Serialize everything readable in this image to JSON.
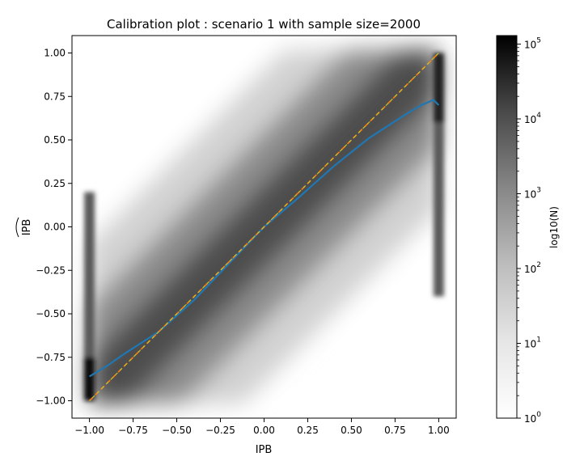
{
  "chart_data": {
    "type": "heatmap",
    "title": "Calibration plot : scenario 1 with sample size=2000",
    "xlabel": "IPB",
    "ylabel": "IPB",
    "ylabel_has_hat": true,
    "xlim": [
      -1.1,
      1.1
    ],
    "ylim": [
      -1.1,
      1.1
    ],
    "x_ticks": [
      -1.0,
      -0.75,
      -0.5,
      -0.25,
      0.0,
      0.25,
      0.5,
      0.75,
      1.0
    ],
    "x_tick_labels": [
      "−1.00",
      "−0.75",
      "−0.50",
      "−0.25",
      "0.00",
      "0.25",
      "0.50",
      "0.75",
      "1.00"
    ],
    "y_ticks": [
      1.0,
      0.75,
      0.5,
      0.25,
      0.0,
      -0.25,
      -0.5,
      -0.75,
      -1.0
    ],
    "y_tick_labels": [
      "1.00",
      "0.75",
      "0.50",
      "0.25",
      "0.00",
      "−0.25",
      "−0.50",
      "−0.75",
      "−1.00"
    ],
    "grid": false,
    "colorbar": {
      "label": "log10(N)",
      "scale": "log",
      "range": [
        1,
        130000
      ],
      "ticks": [
        1,
        10,
        100,
        1000,
        10000,
        100000
      ],
      "tick_labels": [
        "10",
        "10",
        "10",
        "10",
        "10",
        "10"
      ],
      "tick_exponents": [
        "0",
        "1",
        "2",
        "3",
        "4",
        "5"
      ],
      "colormap": "Greys"
    },
    "series": [
      {
        "type": "line",
        "color": "#1f77b4",
        "x": [
          -1.0,
          -0.9,
          -0.8,
          -0.6,
          -0.4,
          -0.2,
          0.0,
          0.2,
          0.4,
          0.6,
          0.8,
          0.9,
          0.97,
          1.0
        ],
        "y": [
          -0.86,
          -0.8,
          -0.73,
          -0.6,
          -0.42,
          -0.21,
          0.0,
          0.17,
          0.35,
          0.51,
          0.64,
          0.7,
          0.73,
          0.7
        ]
      },
      {
        "type": "line",
        "style": "dashed",
        "color": "#ff7f0e",
        "x": [
          -1.0,
          1.0
        ],
        "y": [
          -1.0,
          1.0
        ]
      },
      {
        "type": "line",
        "style": "dashed",
        "color": "#c9c22a",
        "x": [
          -1.0,
          1.0
        ],
        "y": [
          -1.0,
          1.0
        ]
      }
    ]
  }
}
